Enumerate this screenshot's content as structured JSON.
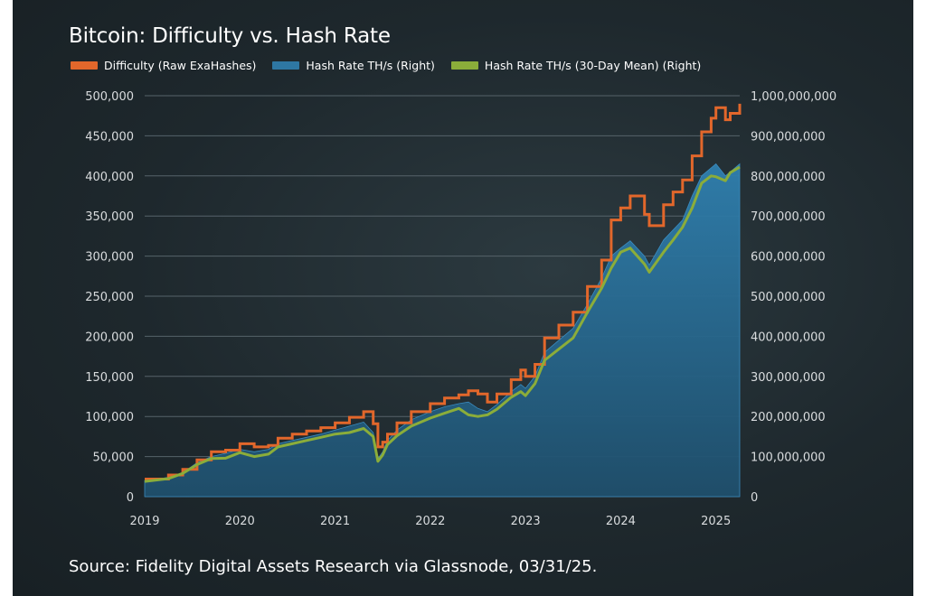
{
  "title": "Bitcoin: Difficulty vs. Hash Rate",
  "source": "Source: Fidelity Digital Assets Research via Glassnode, 03/31/25.",
  "colors": {
    "difficulty": "#e2672b",
    "hashrate": "#2e77a3",
    "mean": "#8bad3a",
    "grid": "#56636a",
    "tick": "#d9dcde"
  },
  "chart_data": {
    "type": "line",
    "title": "Bitcoin: Difficulty vs. Hash Rate",
    "x_ticks": [
      "2019",
      "2020",
      "2021",
      "2022",
      "2023",
      "2024",
      "2025"
    ],
    "x_range": [
      2019.0,
      2025.25
    ],
    "y_left_ticks": [
      "0",
      "50,000",
      "100,000",
      "150,000",
      "200,000",
      "250,000",
      "300,000",
      "350,000",
      "400,000",
      "450,000",
      "500,000"
    ],
    "y_left_range": [
      0,
      500000
    ],
    "y_right_ticks": [
      "0",
      "100,000,000",
      "200,000,000",
      "300,000,000",
      "400,000,000",
      "500,000,000",
      "600,000,000",
      "700,000,000",
      "800,000,000",
      "900,000,000",
      "1,000,000,000"
    ],
    "y_right_range": [
      0,
      1000000000
    ],
    "grid": true,
    "legend_position": "top-left",
    "series": [
      {
        "name": "Difficulty (Raw ExaHashes)",
        "axis": "left",
        "style": "step",
        "x": [
          2019.0,
          2019.25,
          2019.4,
          2019.55,
          2019.7,
          2019.85,
          2020.0,
          2020.15,
          2020.3,
          2020.4,
          2020.55,
          2020.7,
          2020.85,
          2021.0,
          2021.15,
          2021.3,
          2021.4,
          2021.45,
          2021.5,
          2021.55,
          2021.65,
          2021.8,
          2022.0,
          2022.15,
          2022.3,
          2022.4,
          2022.5,
          2022.6,
          2022.7,
          2022.85,
          2022.95,
          2023.0,
          2023.1,
          2023.2,
          2023.35,
          2023.5,
          2023.65,
          2023.8,
          2023.9,
          2024.0,
          2024.1,
          2024.25,
          2024.3,
          2024.45,
          2024.55,
          2024.65,
          2024.75,
          2024.85,
          2024.95,
          2025.0,
          2025.1,
          2025.15,
          2025.25
        ],
        "y": [
          22000,
          27000,
          34000,
          46000,
          56000,
          58000,
          66000,
          62000,
          64000,
          73000,
          78000,
          82000,
          86000,
          92000,
          99000,
          106000,
          91000,
          62000,
          68000,
          78000,
          92000,
          106000,
          116000,
          123000,
          127000,
          132000,
          128000,
          118000,
          128000,
          146000,
          158000,
          150000,
          165000,
          198000,
          214000,
          230000,
          262000,
          295000,
          345000,
          360000,
          375000,
          352000,
          338000,
          364000,
          380000,
          395000,
          425000,
          455000,
          472000,
          485000,
          470000,
          478000,
          490000
        ]
      },
      {
        "name": "Hash Rate TH/s (Right)",
        "axis": "right",
        "style": "area",
        "x": [
          2019.0,
          2019.25,
          2019.4,
          2019.55,
          2019.7,
          2019.85,
          2020.0,
          2020.15,
          2020.3,
          2020.4,
          2020.55,
          2020.7,
          2020.85,
          2021.0,
          2021.15,
          2021.3,
          2021.4,
          2021.45,
          2021.5,
          2021.55,
          2021.65,
          2021.8,
          2022.0,
          2022.15,
          2022.3,
          2022.4,
          2022.5,
          2022.6,
          2022.7,
          2022.85,
          2022.95,
          2023.0,
          2023.1,
          2023.2,
          2023.35,
          2023.5,
          2023.65,
          2023.8,
          2023.9,
          2024.0,
          2024.1,
          2024.25,
          2024.3,
          2024.45,
          2024.55,
          2024.65,
          2024.75,
          2024.85,
          2024.95,
          2025.0,
          2025.1,
          2025.15,
          2025.25
        ],
        "y": [
          40000000,
          48000000,
          60000000,
          85000000,
          100000000,
          108000000,
          118000000,
          112000000,
          118000000,
          132000000,
          140000000,
          148000000,
          156000000,
          166000000,
          176000000,
          186000000,
          160000000,
          95000000,
          112000000,
          140000000,
          166000000,
          192000000,
          212000000,
          224000000,
          232000000,
          236000000,
          220000000,
          212000000,
          230000000,
          262000000,
          280000000,
          270000000,
          300000000,
          360000000,
          390000000,
          420000000,
          480000000,
          545000000,
          600000000,
          620000000,
          638000000,
          600000000,
          578000000,
          640000000,
          665000000,
          690000000,
          750000000,
          800000000,
          820000000,
          830000000,
          800000000,
          810000000,
          830000000
        ]
      },
      {
        "name": "Hash Rate TH/s (30-Day Mean) (Right)",
        "axis": "right",
        "style": "line",
        "x": [
          2019.0,
          2019.25,
          2019.4,
          2019.55,
          2019.7,
          2019.85,
          2020.0,
          2020.15,
          2020.3,
          2020.4,
          2020.55,
          2020.7,
          2020.85,
          2021.0,
          2021.15,
          2021.3,
          2021.4,
          2021.45,
          2021.5,
          2021.55,
          2021.65,
          2021.8,
          2022.0,
          2022.15,
          2022.3,
          2022.4,
          2022.5,
          2022.6,
          2022.7,
          2022.85,
          2022.95,
          2023.0,
          2023.1,
          2023.2,
          2023.35,
          2023.5,
          2023.65,
          2023.8,
          2023.9,
          2024.0,
          2024.1,
          2024.25,
          2024.3,
          2024.45,
          2024.55,
          2024.65,
          2024.75,
          2024.85,
          2024.95,
          2025.0,
          2025.1,
          2025.15,
          2025.25
        ],
        "y": [
          38000000,
          45000000,
          58000000,
          80000000,
          95000000,
          96000000,
          110000000,
          100000000,
          106000000,
          124000000,
          132000000,
          140000000,
          148000000,
          156000000,
          160000000,
          170000000,
          150000000,
          88000000,
          104000000,
          130000000,
          152000000,
          176000000,
          196000000,
          208000000,
          220000000,
          204000000,
          200000000,
          204000000,
          218000000,
          248000000,
          262000000,
          252000000,
          282000000,
          340000000,
          368000000,
          396000000,
          460000000,
          520000000,
          570000000,
          610000000,
          620000000,
          580000000,
          560000000,
          610000000,
          640000000,
          672000000,
          720000000,
          782000000,
          800000000,
          798000000,
          788000000,
          808000000,
          822000000
        ]
      }
    ]
  }
}
